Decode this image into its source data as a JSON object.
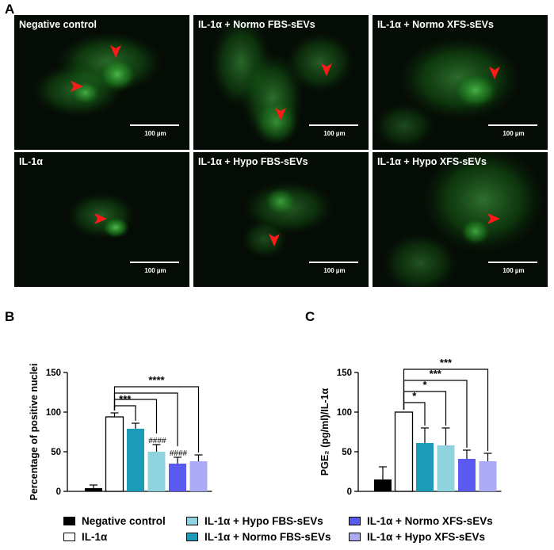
{
  "panel_labels": {
    "a": "A",
    "b": "B",
    "c": "C"
  },
  "images": [
    {
      "title": "Negative control",
      "scale": "100 µm"
    },
    {
      "title": "IL-1α + Normo FBS-sEVs",
      "scale": "100 µm"
    },
    {
      "title": "IL-1α + Normo XFS-sEVs",
      "scale": "100 µm"
    },
    {
      "title": "IL-1α",
      "scale": "100 µm"
    },
    {
      "title": "IL-1α + Hypo FBS-sEVs",
      "scale": "100 µm"
    },
    {
      "title": "IL-1α + Hypo XFS-sEVs",
      "scale": "100 µm"
    }
  ],
  "legend": [
    {
      "label": "Negative control",
      "color": "#000000"
    },
    {
      "label": "IL-1α",
      "color": "#ffffff"
    },
    {
      "label": "IL-1α + Hypo FBS-sEVs",
      "color": "#8fd3df"
    },
    {
      "label": "IL-1α + Normo FBS-sEVs",
      "color": "#1b9bb6"
    },
    {
      "label": "IL-1α + Normo XFS-sEVs",
      "color": "#5a5af0"
    },
    {
      "label": "IL-1α + Hypo XFS-sEVs",
      "color": "#aaaaf5"
    }
  ],
  "chart_data": [
    {
      "type": "bar",
      "panel": "B",
      "ylabel": "Percentage of positive nuclei",
      "ylim": [
        0,
        150
      ],
      "yticks": [
        "0",
        "50",
        "100",
        "150"
      ],
      "categories": [
        "Negative control",
        "IL-1α",
        "IL-1α + Normo FBS-sEVs",
        "IL-1α + Hypo FBS-sEVs",
        "IL-1α + Normo XFS-sEVs",
        "IL-1α + Hypo XFS-sEVs"
      ],
      "values": [
        4,
        94,
        79,
        50,
        35,
        38
      ],
      "errors": [
        4,
        5,
        7,
        9,
        8,
        8
      ],
      "colors": [
        "#000000",
        "#ffffff",
        "#1b9bb6",
        "#8fd3df",
        "#5a5af0",
        "#aaaaf5"
      ],
      "hash_labels": [
        "",
        "",
        "",
        "####",
        "####",
        ""
      ],
      "brackets": [
        {
          "from": 1,
          "to": 2,
          "label": "***"
        },
        {
          "from": 1,
          "to": 3,
          "label": ""
        },
        {
          "from": 1,
          "to": 4,
          "label": ""
        },
        {
          "from": 1,
          "to": 5,
          "label": "****"
        }
      ]
    },
    {
      "type": "bar",
      "panel": "C",
      "ylabel": "PGE₂ (pg/ml)/IL-1α",
      "ylim": [
        0,
        150
      ],
      "yticks": [
        "0",
        "50",
        "100",
        "150"
      ],
      "categories": [
        "Negative control",
        "IL-1α",
        "IL-1α + Normo FBS-sEVs",
        "IL-1α + Hypo FBS-sEVs",
        "IL-1α + Normo XFS-sEVs",
        "IL-1α + Hypo XFS-sEVs"
      ],
      "values": [
        15,
        100,
        61,
        58,
        41,
        38
      ],
      "errors": [
        16,
        0,
        19,
        22,
        11,
        10
      ],
      "colors": [
        "#000000",
        "#ffffff",
        "#1b9bb6",
        "#8fd3df",
        "#5a5af0",
        "#aaaaf5"
      ],
      "hash_labels": [
        "",
        "",
        "",
        "",
        "",
        ""
      ],
      "brackets": [
        {
          "from": 1,
          "to": 2,
          "label": "*"
        },
        {
          "from": 1,
          "to": 3,
          "label": "*"
        },
        {
          "from": 1,
          "to": 4,
          "label": "***"
        },
        {
          "from": 1,
          "to": 5,
          "label": "***"
        }
      ]
    }
  ]
}
